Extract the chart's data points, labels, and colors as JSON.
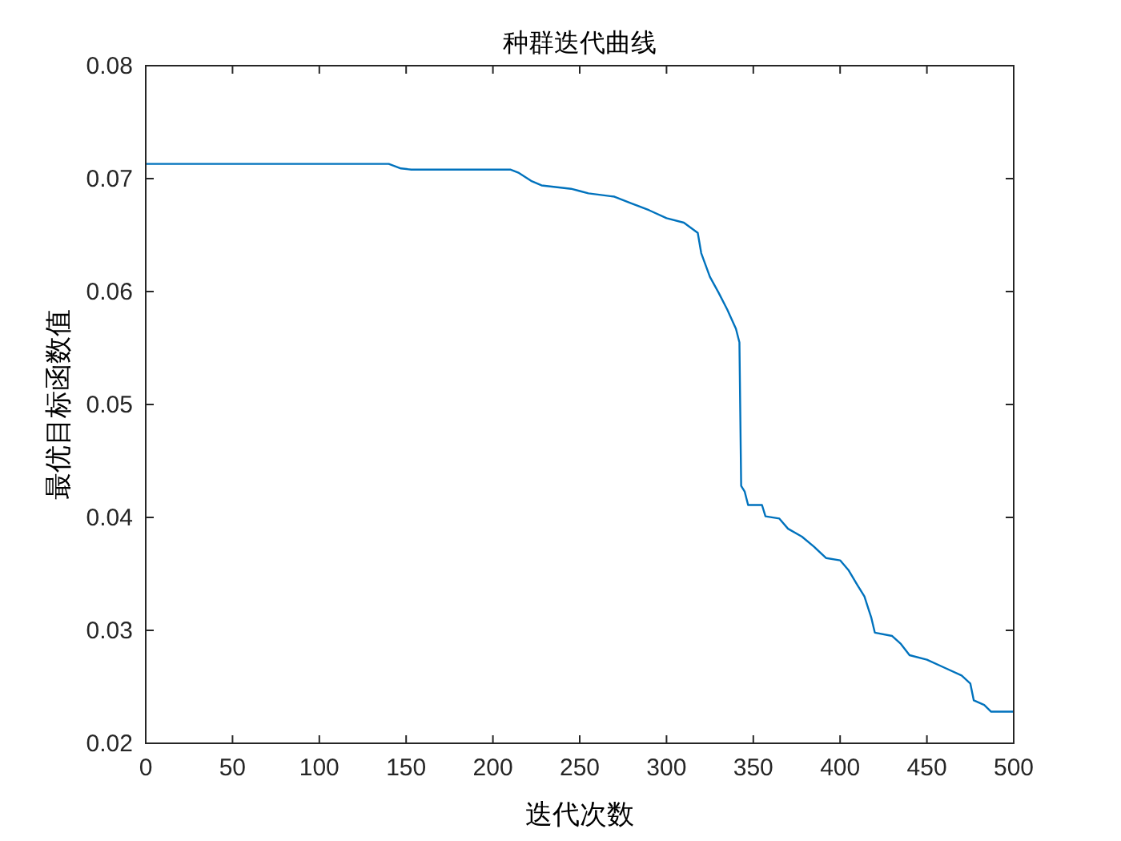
{
  "chart_data": {
    "type": "line",
    "title": "种群迭代曲线",
    "xlabel": "迭代次数",
    "ylabel": "最优目标函数值",
    "x": [
      0,
      140,
      147,
      153,
      210,
      215,
      222,
      228,
      245,
      250,
      255,
      270,
      280,
      290,
      300,
      310,
      318,
      320,
      325,
      330,
      335,
      340,
      342,
      343,
      345,
      347,
      355,
      357,
      365,
      370,
      378,
      385,
      392,
      400,
      405,
      410,
      414,
      418,
      420,
      430,
      435,
      440,
      450,
      460,
      470,
      475,
      477,
      483,
      487,
      500
    ],
    "series": [
      {
        "color": "#0072bd",
        "values": [
          0.0713,
          0.0713,
          0.0709,
          0.0708,
          0.0708,
          0.0705,
          0.0698,
          0.0694,
          0.0691,
          0.0689,
          0.0687,
          0.0684,
          0.0678,
          0.0672,
          0.0665,
          0.0661,
          0.0652,
          0.0634,
          0.0613,
          0.0599,
          0.0584,
          0.0567,
          0.0555,
          0.0428,
          0.0423,
          0.0411,
          0.0411,
          0.0401,
          0.0399,
          0.039,
          0.0383,
          0.0374,
          0.0364,
          0.0362,
          0.0353,
          0.034,
          0.033,
          0.0311,
          0.0298,
          0.0295,
          0.0288,
          0.0278,
          0.0274,
          0.0267,
          0.026,
          0.0253,
          0.0238,
          0.0234,
          0.0228,
          0.0228
        ]
      }
    ],
    "xlim": [
      0,
      500
    ],
    "ylim": [
      0.02,
      0.08
    ],
    "xticks": [
      0,
      50,
      100,
      150,
      200,
      250,
      300,
      350,
      400,
      450,
      500
    ],
    "yticks": [
      0.02,
      0.03,
      0.04,
      0.05,
      0.06,
      0.07,
      0.08
    ],
    "grid": false
  }
}
